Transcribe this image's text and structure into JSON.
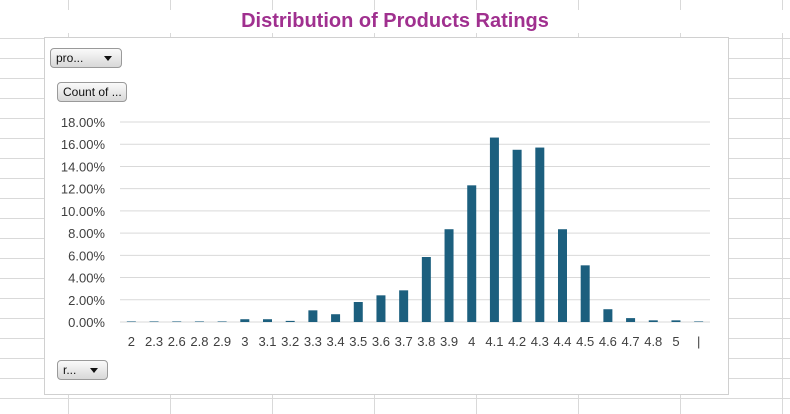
{
  "filter_button": {
    "label": "pro..."
  },
  "value_button": {
    "label": "Count of ..."
  },
  "axis_button": {
    "label": "r..."
  },
  "chart_data": {
    "type": "bar",
    "title": "Distribution of Products Ratings",
    "categories": [
      "2",
      "2.3",
      "2.6",
      "2.8",
      "2.9",
      "3",
      "3.1",
      "3.2",
      "3.3",
      "3.4",
      "3.5",
      "3.6",
      "3.7",
      "3.8",
      "3.9",
      "4",
      "4.1",
      "4.2",
      "4.3",
      "4.4",
      "4.5",
      "4.6",
      "4.7",
      "4.8",
      "5",
      "|"
    ],
    "values": [
      0.05,
      0.05,
      0.05,
      0.05,
      0.05,
      0.25,
      0.25,
      0.1,
      1.05,
      0.7,
      1.8,
      2.4,
      2.85,
      5.85,
      8.35,
      12.3,
      16.6,
      15.5,
      15.7,
      8.35,
      5.1,
      1.15,
      0.35,
      0.15,
      0.15,
      0.05
    ],
    "value_format": "percent",
    "ylim": [
      0,
      18
    ],
    "yticks": [
      "0.00%",
      "2.00%",
      "4.00%",
      "6.00%",
      "8.00%",
      "10.00%",
      "12.00%",
      "14.00%",
      "16.00%",
      "18.00%"
    ],
    "xlabel": "",
    "ylabel": "",
    "bar_color": "#1c5f7e",
    "grid": true,
    "legend": "none"
  }
}
